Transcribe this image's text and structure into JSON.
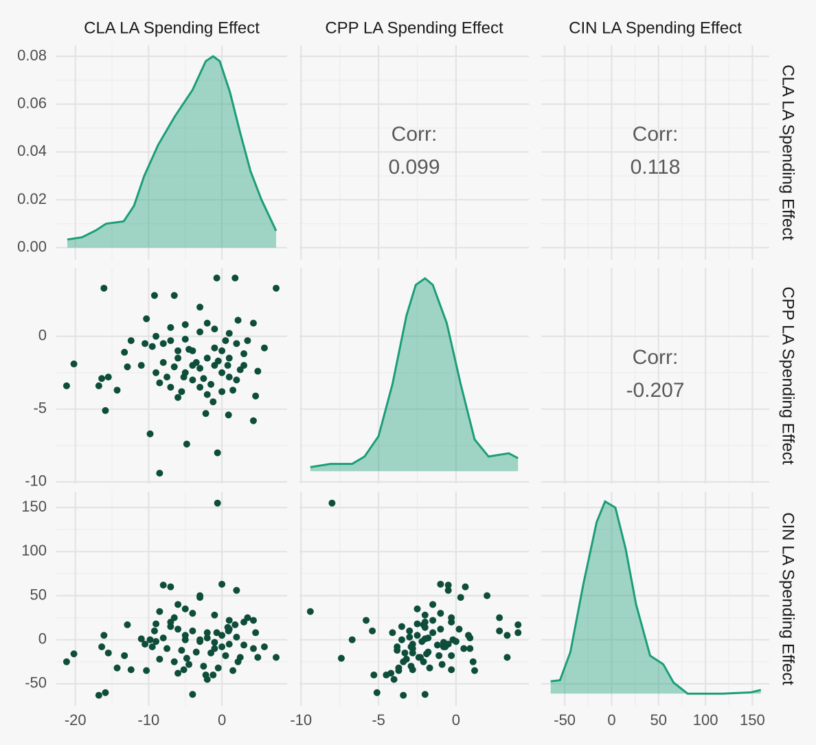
{
  "chart_data": {
    "type": "pairs",
    "point_color": "#0d4d3a",
    "density_color": "#1b9e77",
    "grid": true,
    "corr_label": "Corr:",
    "correlations": [
      0.099,
      0.118,
      -0.207
    ],
    "density_yticks": [
      {
        "value": 0,
        "label": "0.00"
      },
      {
        "value": 0.02,
        "label": "0.02"
      },
      {
        "value": 0.04,
        "label": "0.04"
      },
      {
        "value": 0.06,
        "label": "0.06"
      },
      {
        "value": 0.08,
        "label": "0.08"
      }
    ],
    "variables": [
      {
        "name": "CLA LA Spending Effect",
        "lim": [
          -22.6,
          8.9
        ],
        "ticks": [
          -20,
          -10,
          0
        ],
        "values": [
          7.4,
          -16.1,
          -0.7,
          1.8,
          -9.2,
          -6.5,
          -3.0,
          -10.3,
          -21.2,
          -20.2,
          -16.4,
          -15.5,
          -16.8,
          -14.3,
          -15.9,
          -9.8,
          -4.8,
          -0.6,
          -8.5,
          4.3,
          4.6,
          4.3,
          5.8,
          4.9,
          0.9,
          -2.2,
          -13.3,
          -12.4,
          -12.9,
          -8,
          -7,
          -3,
          0,
          2,
          -6,
          -5,
          -4,
          -1,
          1,
          3,
          -9,
          -7,
          -6,
          -4,
          -2,
          0,
          2,
          -8,
          -5,
          -3,
          -1,
          1,
          3,
          -9.5,
          -7.5,
          -5.5,
          -3.5,
          -1.5,
          0.5,
          2.5,
          -8.5,
          -6.5,
          -4.5,
          -2.5,
          -0.5,
          1.5,
          -6,
          -2,
          -5,
          -1,
          1,
          -9,
          -7,
          -3,
          0,
          -4,
          -11,
          -10.5,
          -2,
          0.8,
          3.5,
          -1.2,
          -5.2,
          2.2
        ],
        "density": {
          "ylim": [
            -0.005,
            0.0846
          ],
          "x": [
            -21.1,
            -19.1,
            -17.2,
            -15.8,
            -13.4,
            -12.0,
            -10.6,
            -8.7,
            -6.4,
            -4.0,
            -2.2,
            -1.2,
            -0.3,
            1.1,
            2.5,
            3.9,
            5.4,
            7.4
          ],
          "values": [
            0.0034,
            0.0043,
            0.0072,
            0.01,
            0.011,
            0.0175,
            0.03,
            0.043,
            0.055,
            0.066,
            0.078,
            0.08,
            0.078,
            0.065,
            0.048,
            0.032,
            0.02,
            0.007
          ]
        }
      },
      {
        "name": "CPP LA Spending Effect",
        "lim": [
          -10.1,
          4.7
        ],
        "ticks": [
          -10,
          -5,
          0
        ],
        "values": [
          3.3,
          3.3,
          4.0,
          4.0,
          2.8,
          2.8,
          2.0,
          1.2,
          -3.4,
          -1.9,
          -2.9,
          -2.8,
          -3.4,
          -3.7,
          -5.1,
          -6.7,
          -7.4,
          -8.0,
          -9.4,
          -5.8,
          -4.1,
          0.9,
          -0.8,
          -2.4,
          -5.4,
          -5.3,
          -1.1,
          -0.3,
          -2.1,
          -0.5,
          0.6,
          0.3,
          -1,
          -0.5,
          -1.5,
          -2.5,
          -1,
          -2,
          -1.5,
          -2,
          -2.5,
          -3.5,
          -1,
          -3,
          -1.5,
          -2.5,
          -3,
          -1.8,
          -0.2,
          -2.2,
          -0.8,
          -2.8,
          -1.2,
          -0.7,
          -2.8,
          -3.8,
          -1.8,
          -3.3,
          -0.3,
          -2.3,
          -3.2,
          -2.1,
          -0.9,
          -2.9,
          -1.7,
          -3.7,
          -4.2,
          -4.0,
          0.8,
          0.5,
          0.2,
          0,
          -0.3,
          -3.5,
          -3.8,
          -2,
          -2,
          -0.5,
          0.9,
          -2,
          -0.3,
          -4.5,
          -2.8,
          1.1
        ],
        "density": {
          "ylim": [
            -0.015,
            0.25
          ],
          "x": [
            -9.4,
            -8.1,
            -6.7,
            -5.9,
            -5.0,
            -4.1,
            -3.2,
            -2.6,
            -2.0,
            -1.5,
            -0.6,
            0.3,
            1.2,
            2.1,
            3.4,
            4.0
          ],
          "values": [
            0.005,
            0.009,
            0.009,
            0.018,
            0.043,
            0.107,
            0.191,
            0.229,
            0.237,
            0.229,
            0.182,
            0.107,
            0.039,
            0.018,
            0.022,
            0.016
          ]
        }
      },
      {
        "name": "CIN LA Spending Effect",
        "lim": [
          -75,
          168
        ],
        "ticks": [
          -50,
          0,
          50,
          100,
          150
        ],
        "values": [
          -20,
          5,
          8,
          17,
          10,
          25,
          50,
          -35,
          -25,
          -16,
          -8,
          -15,
          -63,
          -32,
          -60,
          0,
          -21,
          155,
          32,
          22,
          8,
          -10,
          -8,
          -20,
          10,
          -40,
          -18,
          -34,
          17,
          62,
          60,
          48,
          63,
          56,
          40,
          35,
          30,
          28,
          22,
          20,
          18,
          15,
          12,
          10,
          8,
          5,
          3,
          2,
          0,
          -2,
          -3,
          -5,
          -6,
          -8,
          -10,
          -12,
          -14,
          -15,
          -18,
          -20,
          -22,
          -25,
          -28,
          -30,
          -32,
          -35,
          -38,
          -45,
          5,
          -10,
          12,
          -2,
          20,
          0,
          -8,
          -62,
          1,
          -5,
          2,
          14,
          25,
          -40,
          -34,
          -25
        ],
        "density": {
          "ylim": [
            -0.001,
            0.0165
          ],
          "x": [
            -65,
            -55,
            -44,
            -30,
            -16,
            -7,
            4,
            15,
            26,
            41,
            55,
            66,
            81,
            118,
            148,
            159
          ],
          "values": [
            0.001,
            0.0011,
            0.0034,
            0.009,
            0.014,
            0.0157,
            0.0152,
            0.0118,
            0.0073,
            0.0031,
            0.0024,
            0.0009,
            0,
            0,
            0.0001,
            0.0003
          ]
        }
      }
    ]
  }
}
